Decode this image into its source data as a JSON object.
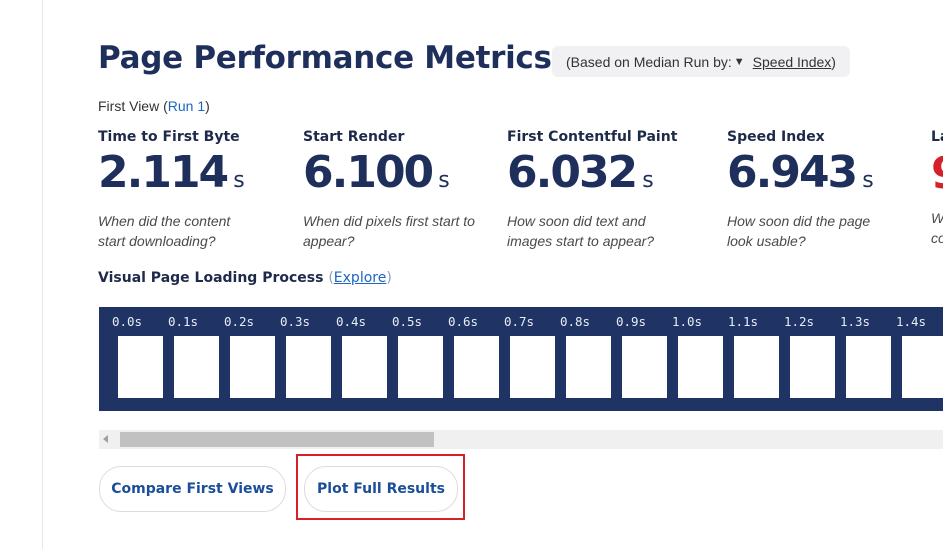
{
  "page": {
    "title": "Page Performance Metrics",
    "median_prefix": "(Based on Median Run by:",
    "median_arrow": "▼",
    "median_selected": "Speed Index",
    "median_suffix": ")"
  },
  "view": {
    "label": "First View",
    "open_paren": "(",
    "run_link": "Run 1",
    "close_paren": ")"
  },
  "metrics": [
    {
      "label": "Time to First Byte",
      "value": "2.114",
      "unit": "s",
      "desc": "When did the content start downloading?"
    },
    {
      "label": "Start Render",
      "value": "6.100",
      "unit": "s",
      "desc": "When did pixels first start to appear?"
    },
    {
      "label": "First Contentful Paint",
      "value": "6.032",
      "unit": "s",
      "desc": "How soon did text and images start to appear?"
    },
    {
      "label": "Speed Index",
      "value": "6.943",
      "unit": "s",
      "desc": "How soon did the page look usable?"
    }
  ],
  "partial_metric": {
    "label": "La",
    "value": "9",
    "desc": "W co"
  },
  "visual": {
    "label": "Visual Page Loading Process",
    "open_paren": "(",
    "explore_link": "Explore",
    "close_paren": ")"
  },
  "filmstrip": {
    "times": [
      "0.0s",
      "0.1s",
      "0.2s",
      "0.3s",
      "0.4s",
      "0.5s",
      "0.6s",
      "0.7s",
      "0.8s",
      "0.9s",
      "1.0s",
      "1.1s",
      "1.2s",
      "1.3s",
      "1.4s"
    ]
  },
  "buttons": {
    "compare": "Compare First Views",
    "plot": "Plot Full Results"
  },
  "colors": {
    "brand_navy": "#1e2f5c",
    "filmstrip_bg": "#1f3465",
    "link": "#1a66c1",
    "highlight": "#d4212a"
  }
}
